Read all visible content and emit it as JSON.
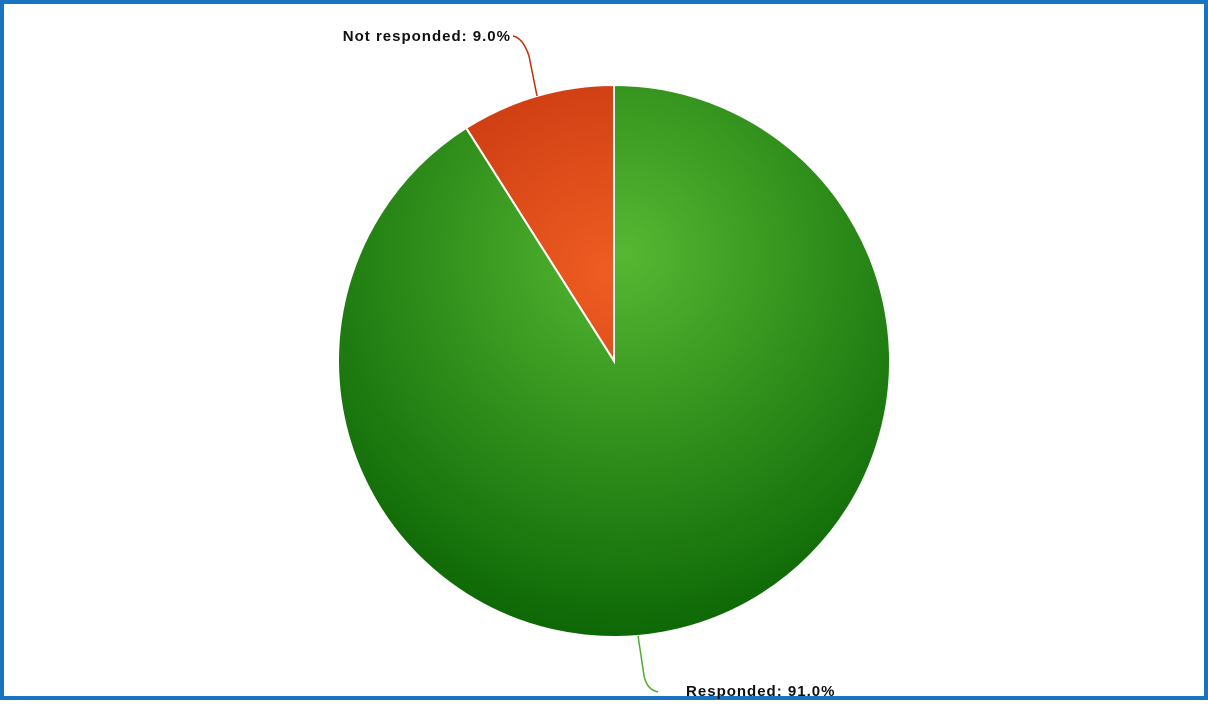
{
  "chart_data": {
    "type": "pie",
    "title": "",
    "slices": [
      {
        "name": "Not responded",
        "value": 9.0,
        "label": "Not responded: 9.0%",
        "color": "#e8521e",
        "color_dark": "#c0300c"
      },
      {
        "name": "Responded",
        "value": 91.0,
        "label": "Responded: 91.0%",
        "color": "#4caf2c",
        "color_dark": "#0e6a06"
      }
    ],
    "start_angle_deg": -32.4,
    "direction": "clockwise",
    "slice_border_color": "#ffffff",
    "frame_color": "#1a73c0"
  }
}
